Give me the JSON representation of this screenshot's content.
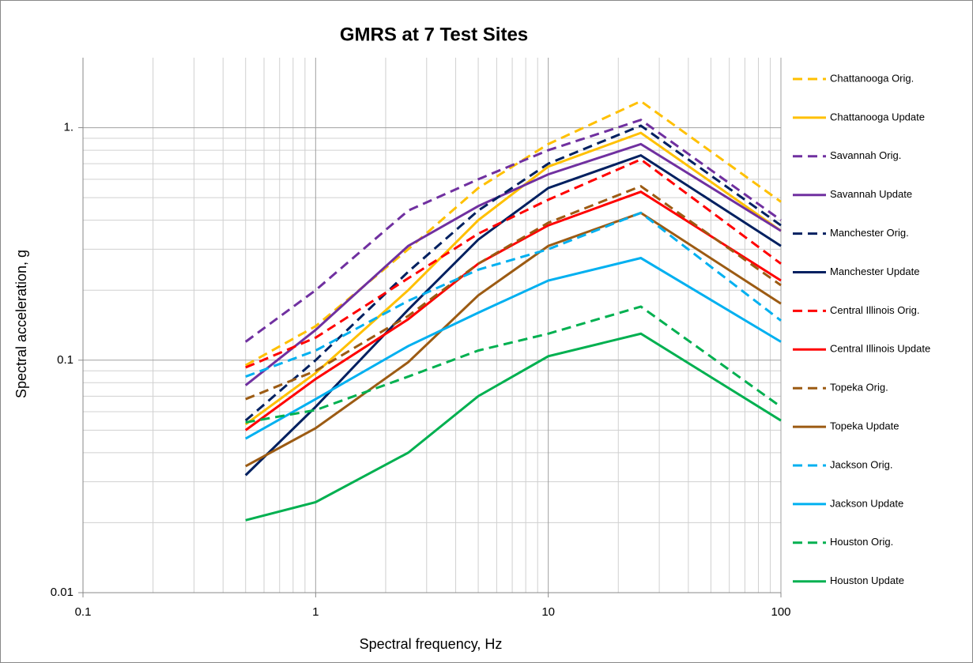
{
  "chart_data": {
    "type": "line",
    "title": "GMRS at 7 Test Sites",
    "x_label": "Spectral frequency, Hz",
    "y_label": "Spectral acceleration, g",
    "log_x": true,
    "log_y": true,
    "grid": true,
    "minor_grid": true,
    "legend": "right",
    "x": [
      0.5,
      1,
      2.5,
      5,
      10,
      25,
      100
    ],
    "xlim": [
      0.1,
      100
    ],
    "xticks": [
      0.1,
      1,
      10,
      100
    ],
    "ylim": [
      0.01,
      2
    ],
    "yticks": [
      0.01,
      0.1,
      {
        "value": 1,
        "label": "1."
      }
    ],
    "series": [
      {
        "name": "Chattanooga Orig.",
        "color": "#FFC000",
        "style": "dashed",
        "values": [
          0.095,
          0.14,
          0.3,
          0.55,
          0.85,
          1.3,
          0.48
        ]
      },
      {
        "name": "Chattanooga Update",
        "color": "#FFC000",
        "style": "solid",
        "values": [
          0.053,
          0.088,
          0.2,
          0.4,
          0.68,
          0.95,
          0.36
        ]
      },
      {
        "name": "Savannah Orig.",
        "color": "#7030A0",
        "style": "dashed",
        "values": [
          0.12,
          0.2,
          0.44,
          0.6,
          0.8,
          1.08,
          0.4
        ]
      },
      {
        "name": "Savannah Update",
        "color": "#7030A0",
        "style": "solid",
        "values": [
          0.078,
          0.135,
          0.31,
          0.46,
          0.63,
          0.85,
          0.36
        ]
      },
      {
        "name": "Manchester Orig.",
        "color": "#002060",
        "style": "dashed",
        "values": [
          0.055,
          0.1,
          0.24,
          0.44,
          0.7,
          1.02,
          0.38
        ]
      },
      {
        "name": "Manchester Update",
        "color": "#002060",
        "style": "solid",
        "values": [
          0.032,
          0.063,
          0.165,
          0.33,
          0.55,
          0.76,
          0.31
        ]
      },
      {
        "name": "Central Illinois Orig.",
        "color": "#FF0000",
        "style": "dashed",
        "values": [
          0.093,
          0.125,
          0.225,
          0.35,
          0.49,
          0.73,
          0.26
        ]
      },
      {
        "name": "Central Illinois Update",
        "color": "#FF0000",
        "style": "solid",
        "values": [
          0.05,
          0.083,
          0.15,
          0.26,
          0.38,
          0.53,
          0.22
        ]
      },
      {
        "name": "Topeka Orig.",
        "color": "#9C5B13",
        "style": "dashed",
        "values": [
          0.068,
          0.09,
          0.155,
          0.26,
          0.39,
          0.56,
          0.21
        ]
      },
      {
        "name": "Topeka Update",
        "color": "#9C5B13",
        "style": "solid",
        "values": [
          0.035,
          0.051,
          0.098,
          0.19,
          0.31,
          0.43,
          0.175
        ]
      },
      {
        "name": "Jackson Orig.",
        "color": "#00B0F0",
        "style": "dashed",
        "values": [
          0.085,
          0.11,
          0.18,
          0.245,
          0.3,
          0.43,
          0.148
        ]
      },
      {
        "name": "Jackson Update",
        "color": "#00B0F0",
        "style": "solid",
        "values": [
          0.046,
          0.068,
          0.115,
          0.16,
          0.22,
          0.275,
          0.12
        ]
      },
      {
        "name": "Houston Orig.",
        "color": "#00B050",
        "style": "dashed",
        "values": [
          0.054,
          0.061,
          0.085,
          0.11,
          0.13,
          0.17,
          0.063
        ]
      },
      {
        "name": "Houston Update",
        "color": "#00B050",
        "style": "solid",
        "values": [
          0.0205,
          0.0245,
          0.04,
          0.07,
          0.104,
          0.13,
          0.055
        ]
      }
    ]
  }
}
